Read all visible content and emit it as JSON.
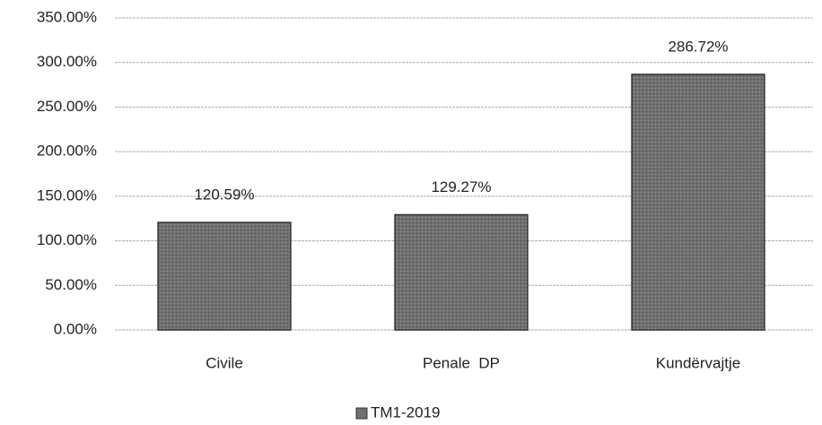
{
  "chart_data": {
    "type": "bar",
    "categories": [
      "Civile",
      "Penale  DP",
      "Kundërvajtje"
    ],
    "series": [
      {
        "name": "TM1-2019",
        "color": "#707070",
        "values": [
          120.59,
          129.27,
          286.72
        ],
        "value_labels": [
          "120.59%",
          "129.27%",
          "286.72%"
        ]
      }
    ],
    "ylim": [
      0,
      350
    ],
    "yticks": [
      {
        "value": 0,
        "label": "0.00%"
      },
      {
        "value": 50,
        "label": "50.00%"
      },
      {
        "value": 100,
        "label": "100.00%"
      },
      {
        "value": 150,
        "label": "150.00%"
      },
      {
        "value": 200,
        "label": "200.00%"
      },
      {
        "value": 250,
        "label": "250.00%"
      },
      {
        "value": 300,
        "label": "300.00%"
      },
      {
        "value": 350,
        "label": "350.00%"
      }
    ],
    "grid": true,
    "legend": "bottom"
  }
}
